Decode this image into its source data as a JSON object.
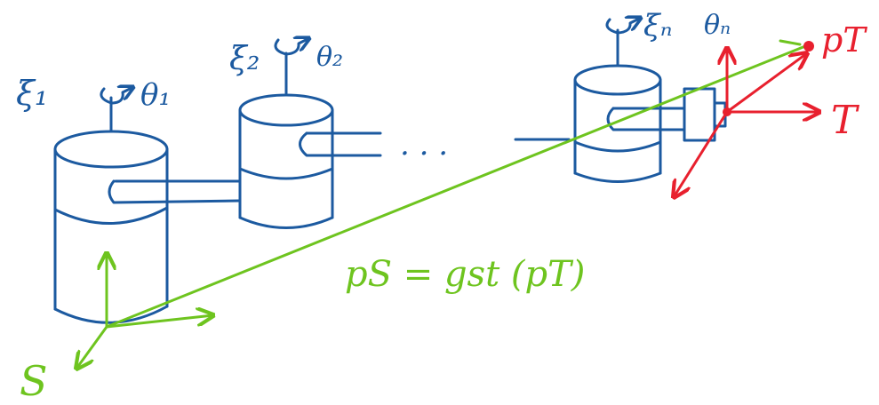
{
  "colors": {
    "manipulator": "#1c5aa0",
    "frame_s": "#6ec41f",
    "frame_t": "#e8202e",
    "background": "#ffffff"
  },
  "labels": {
    "joint1_twist": "ξ₁",
    "joint1_angle": "θ₁",
    "joint2_twist": "ξ₂",
    "joint2_angle": "θ₂",
    "jointn_twist": "ξₙ",
    "jointn_angle": "θₙ",
    "ellipsis": ". . .",
    "frame_s": "S",
    "frame_t": "T",
    "point_tool": "pT",
    "equation": "pS = gst (pT)"
  },
  "icons": {
    "joint_rotation": "curved-rotation-arrow-icon",
    "frame_axes": "coordinate-axes-icon"
  }
}
